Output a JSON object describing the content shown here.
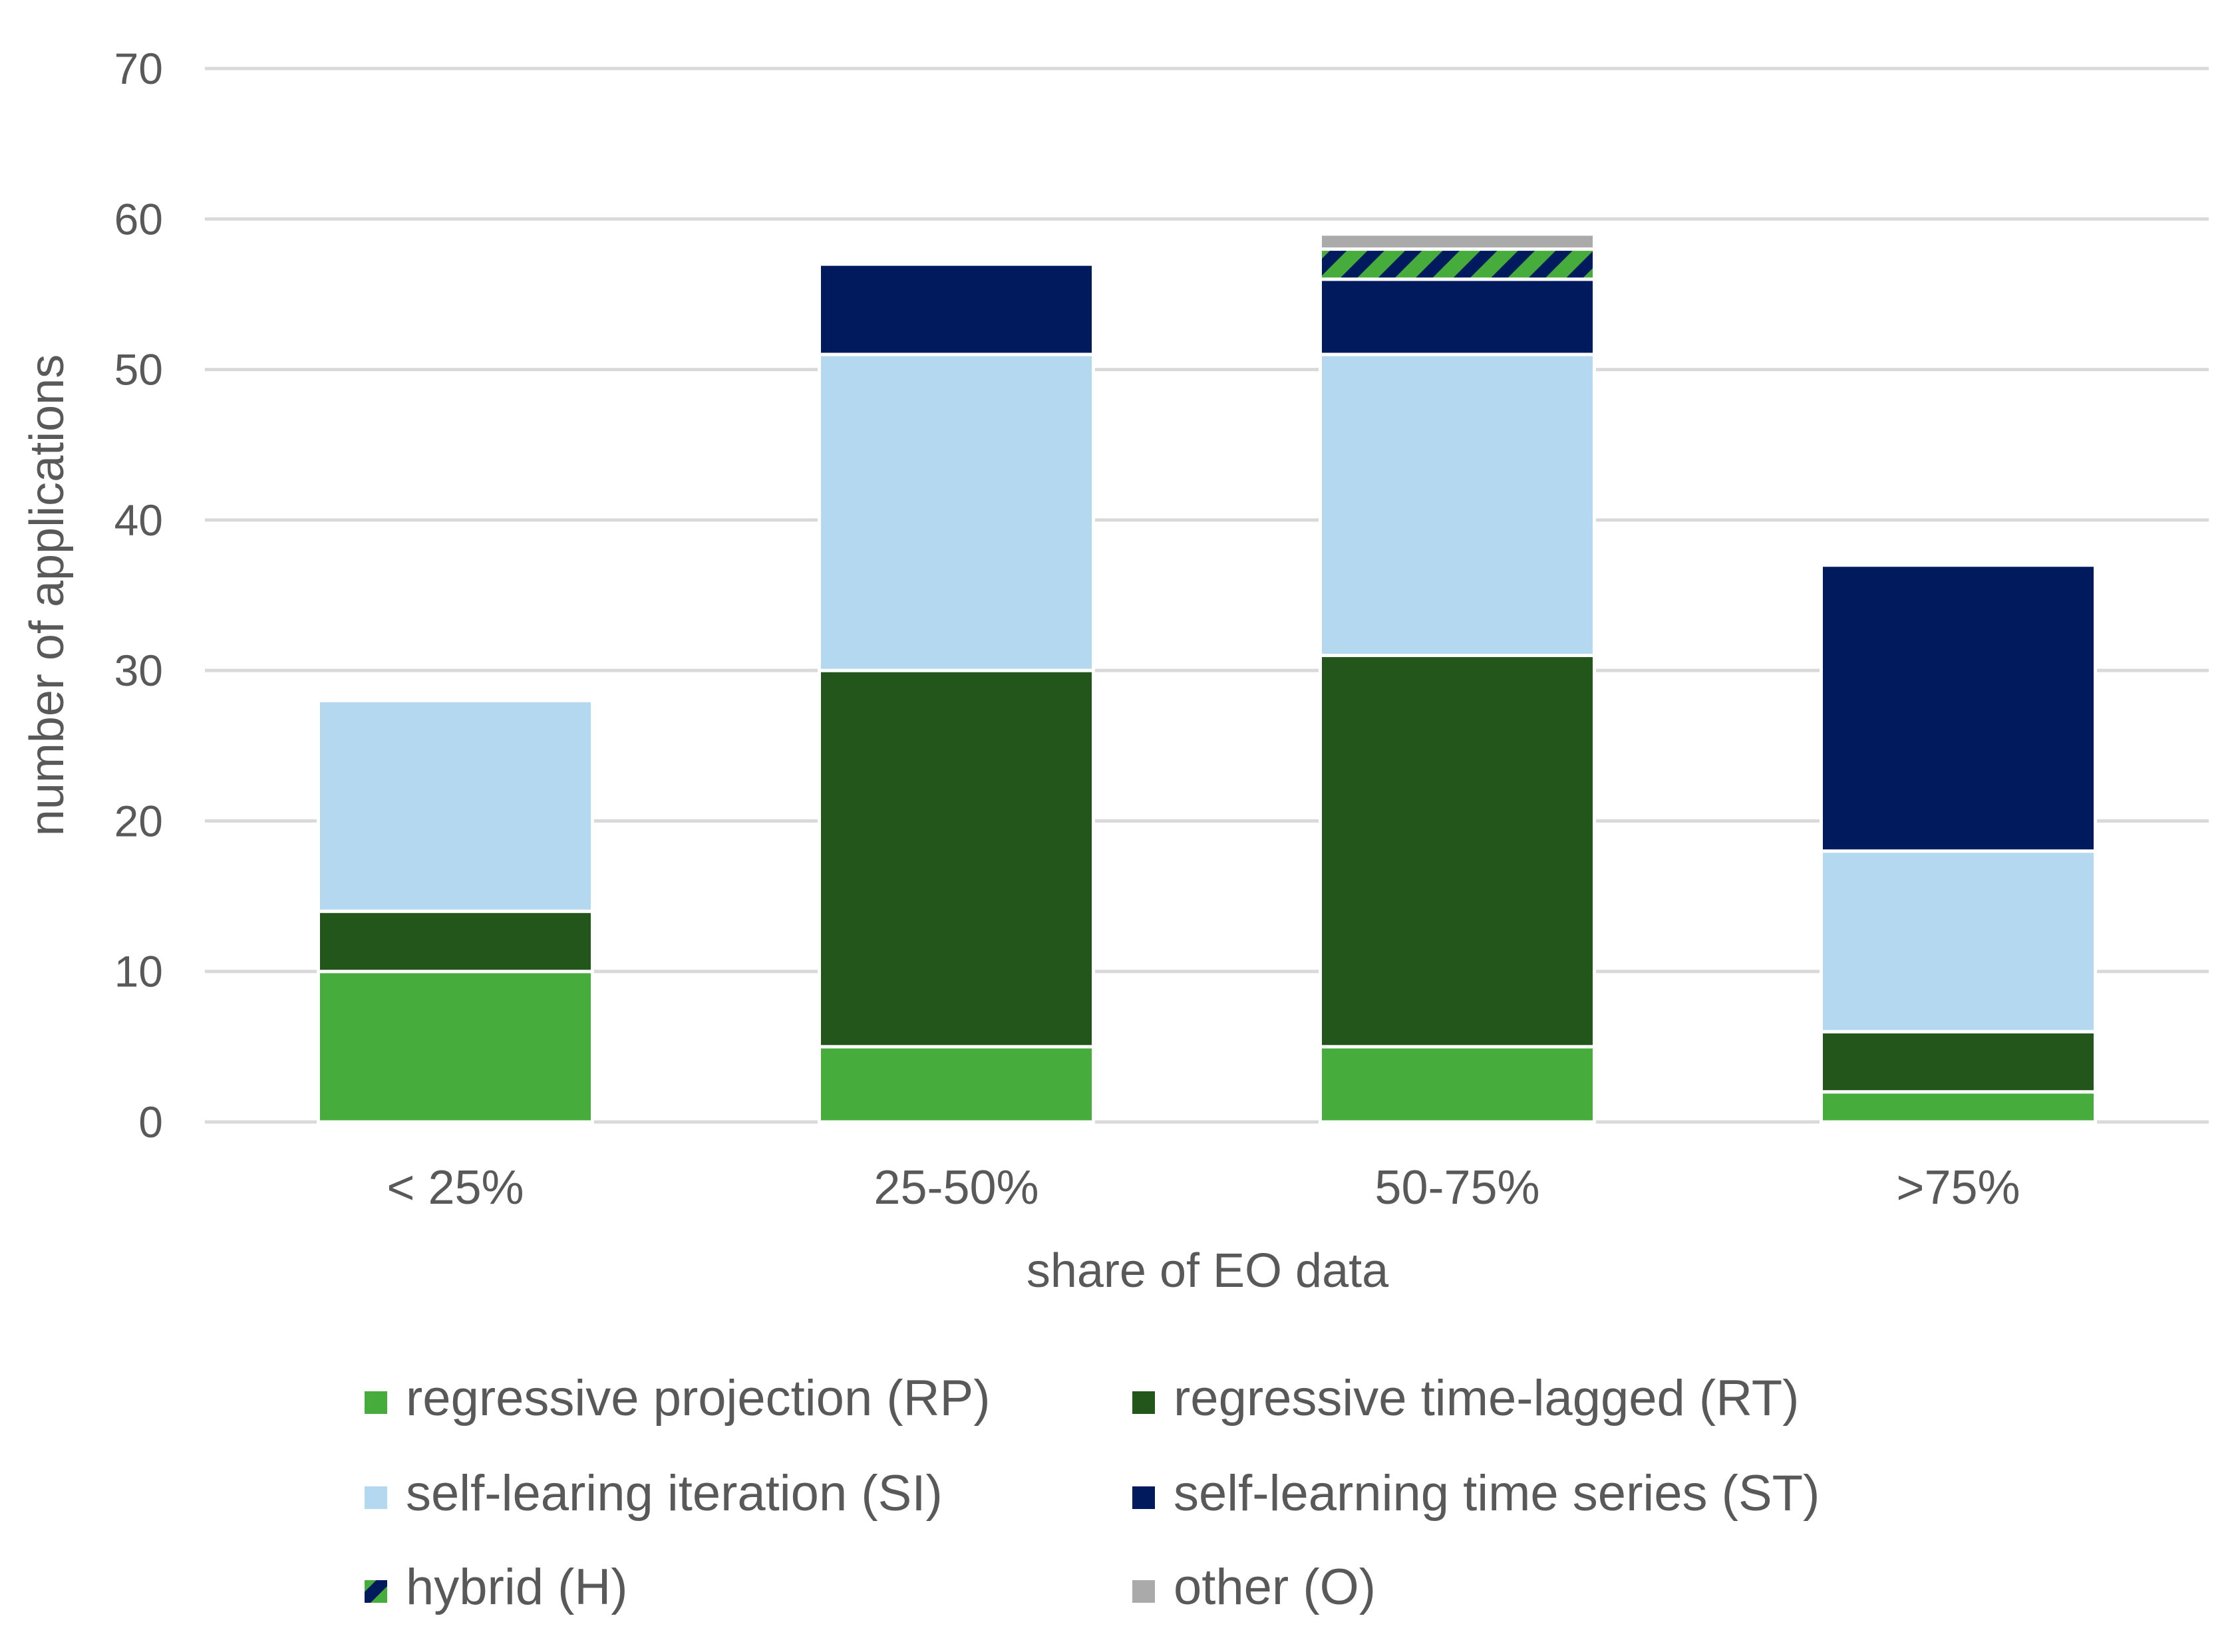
{
  "chart_data": {
    "type": "bar",
    "stacked": true,
    "title": "",
    "xlabel": "share of EO data",
    "ylabel": "number of applications",
    "ylim": [
      0,
      70
    ],
    "yticks": [
      0,
      10,
      20,
      30,
      40,
      50,
      60,
      70
    ],
    "yticks_labels": [
      "0",
      "10",
      "20",
      "30",
      "40",
      "50",
      "60",
      "70"
    ],
    "grid": true,
    "legend_position": "bottom",
    "categories": [
      "< 25%",
      "25-50%",
      "50-75%",
      ">75%"
    ],
    "series": [
      {
        "name": "regressive projection (RP)",
        "color": "#46AD3C",
        "pattern": "solid",
        "values": [
          10,
          5,
          5,
          2
        ]
      },
      {
        "name": "regressive time-lagged (RT)",
        "color": "#22561B",
        "pattern": "solid",
        "values": [
          4,
          25,
          26,
          4
        ]
      },
      {
        "name": "self-learing iteration (SI)",
        "color": "#B4D8EF",
        "pattern": "solid",
        "values": [
          14,
          21,
          20,
          12
        ]
      },
      {
        "name": "self-learning time series (ST)",
        "color": "#001A5E",
        "pattern": "solid",
        "values": [
          0,
          6,
          5,
          19
        ]
      },
      {
        "name": "hybrid (H)",
        "color": "#46AD3C",
        "color2": "#001A5E",
        "pattern": "hatch",
        "values": [
          0,
          0,
          2,
          0
        ]
      },
      {
        "name": "other (O)",
        "color": "#AAAAAA",
        "pattern": "solid",
        "values": [
          0,
          0,
          1,
          0
        ]
      }
    ]
  }
}
